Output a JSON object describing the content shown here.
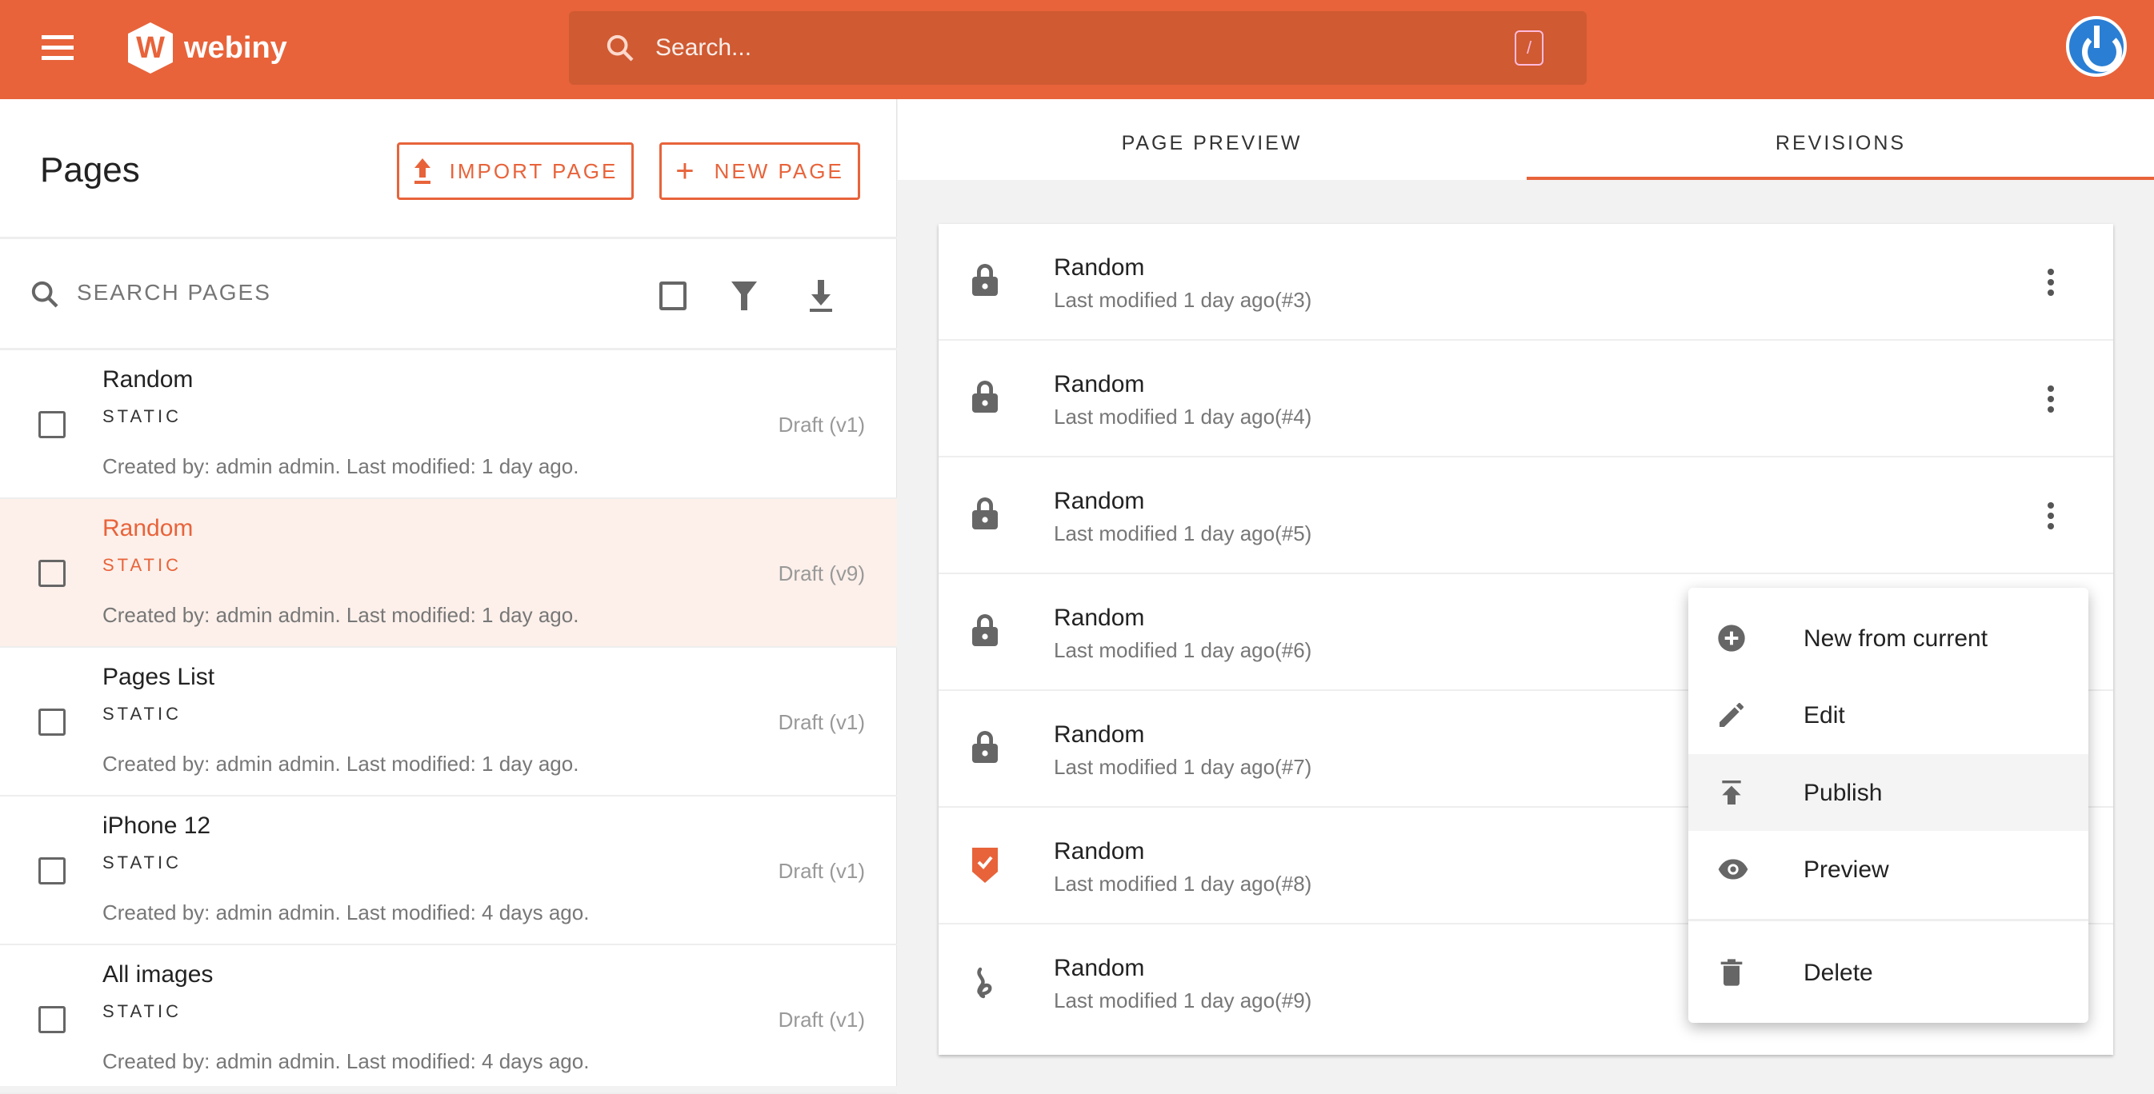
{
  "header": {
    "logo_text": "webiny",
    "search_placeholder": "Search...",
    "shortcut": "/"
  },
  "pages": {
    "title": "Pages",
    "import_label": "IMPORT PAGE",
    "new_label": "NEW PAGE",
    "search_placeholder": "SEARCH PAGES",
    "items": [
      {
        "title": "Random",
        "type": "STATIC",
        "version": "Draft (v1)",
        "meta": "Created by: admin admin. Last modified: 1 day ago."
      },
      {
        "title": "Random",
        "type": "STATIC",
        "version": "Draft (v9)",
        "meta": "Created by: admin admin. Last modified: 1 day ago."
      },
      {
        "title": "Pages List",
        "type": "STATIC",
        "version": "Draft (v1)",
        "meta": "Created by: admin admin. Last modified: 1 day ago."
      },
      {
        "title": "iPhone 12",
        "type": "STATIC",
        "version": "Draft (v1)",
        "meta": "Created by: admin admin. Last modified: 4 days ago."
      },
      {
        "title": "All images",
        "type": "STATIC",
        "version": "Draft (v1)",
        "meta": "Created by: admin admin. Last modified: 4 days ago."
      }
    ]
  },
  "tabs": {
    "preview": "PAGE PREVIEW",
    "revisions": "REVISIONS",
    "active": "REVISIONS"
  },
  "revisions": [
    {
      "title": "Random",
      "meta": "Last modified 1 day ago(#3)",
      "status": "locked"
    },
    {
      "title": "Random",
      "meta": "Last modified 1 day ago(#4)",
      "status": "locked"
    },
    {
      "title": "Random",
      "meta": "Last modified 1 day ago(#5)",
      "status": "locked"
    },
    {
      "title": "Random",
      "meta": "Last modified 1 day ago(#6)",
      "status": "locked"
    },
    {
      "title": "Random",
      "meta": "Last modified 1 day ago(#7)",
      "status": "locked"
    },
    {
      "title": "Random",
      "meta": "Last modified 1 day ago(#8)",
      "status": "published"
    },
    {
      "title": "Random",
      "meta": "Last modified 1 day ago(#9)",
      "status": "draft"
    }
  ],
  "context_menu": {
    "new_from_current": "New from current",
    "edit": "Edit",
    "publish": "Publish",
    "preview": "Preview",
    "delete": "Delete"
  },
  "colors": {
    "brand": "#e8633a",
    "search_bg": "#d05a32"
  }
}
